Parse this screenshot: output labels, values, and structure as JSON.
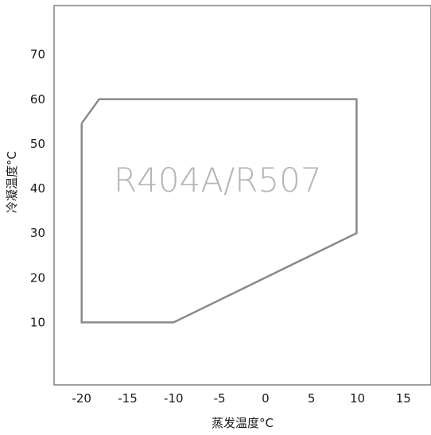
{
  "chart_data": {
    "type": "line",
    "xlabel": "蒸发温度°C",
    "ylabel": "冷凝温度°C",
    "xlim": [
      -23,
      18
    ],
    "ylim": [
      -4,
      81
    ],
    "x_ticks": [
      -20,
      -15,
      -10,
      -5,
      0,
      5,
      10,
      15
    ],
    "y_ticks": [
      10,
      20,
      30,
      40,
      50,
      60,
      70
    ],
    "grid": false,
    "series": [
      {
        "name": "R404A/R507",
        "closed": true,
        "x": [
          -20,
          -18.1,
          9.9,
          9.9,
          -10,
          -20,
          -20
        ],
        "y": [
          54.6,
          60,
          60,
          30,
          10,
          10,
          54.6
        ]
      }
    ],
    "annotations": [
      {
        "text": "R404A/R507",
        "x": -5.2,
        "y": 42
      }
    ],
    "colors": {
      "frame": "#808080",
      "outline": "#8a8a8a",
      "label": "#b5b5b5"
    }
  }
}
